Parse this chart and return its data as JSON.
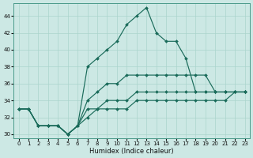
{
  "xlabel": "Humidex (Indice chaleur)",
  "bg_color": "#cce8e4",
  "line_color": "#1a6b5a",
  "grid_color": "#aad4cc",
  "lines": [
    {
      "x": [
        0,
        1,
        2,
        3,
        4,
        5,
        6,
        7,
        8,
        9,
        10,
        11,
        12,
        13,
        14,
        15,
        16,
        17,
        18,
        19,
        20,
        21,
        22,
        23
      ],
      "y": [
        33,
        33,
        31,
        31,
        31,
        30,
        31,
        38,
        39,
        40,
        41,
        43,
        44,
        45,
        42,
        41,
        41,
        39,
        35,
        35,
        35,
        35,
        35,
        35
      ]
    },
    {
      "x": [
        0,
        1,
        2,
        3,
        4,
        5,
        6,
        7,
        8,
        9,
        10,
        11,
        12,
        13,
        14,
        15,
        16,
        17,
        18,
        19,
        20,
        21,
        22,
        23
      ],
      "y": [
        33,
        33,
        31,
        31,
        31,
        30,
        31,
        34,
        35,
        36,
        36,
        37,
        37,
        37,
        37,
        37,
        37,
        37,
        37,
        37,
        35,
        35,
        35,
        35
      ]
    },
    {
      "x": [
        0,
        1,
        2,
        3,
        4,
        5,
        6,
        7,
        8,
        9,
        10,
        11,
        12,
        13,
        14,
        15,
        16,
        17,
        18,
        19,
        20,
        21,
        22,
        23
      ],
      "y": [
        33,
        33,
        31,
        31,
        31,
        30,
        31,
        33,
        33,
        34,
        34,
        34,
        35,
        35,
        35,
        35,
        35,
        35,
        35,
        35,
        35,
        35,
        35,
        35
      ]
    },
    {
      "x": [
        0,
        1,
        2,
        3,
        4,
        5,
        6,
        7,
        8,
        9,
        10,
        11,
        12,
        13,
        14,
        15,
        16,
        17,
        18,
        19,
        20,
        21,
        22,
        23
      ],
      "y": [
        33,
        33,
        31,
        31,
        31,
        30,
        31,
        32,
        33,
        33,
        33,
        33,
        34,
        34,
        34,
        34,
        34,
        34,
        34,
        34,
        34,
        34,
        35,
        35
      ]
    }
  ],
  "ylim": [
    29.5,
    45.5
  ],
  "xlim": [
    -0.5,
    23.5
  ],
  "yticks": [
    30,
    32,
    34,
    36,
    38,
    40,
    42,
    44
  ],
  "xticks": [
    0,
    1,
    2,
    3,
    4,
    5,
    6,
    7,
    8,
    9,
    10,
    11,
    12,
    13,
    14,
    15,
    16,
    17,
    18,
    19,
    20,
    21,
    22,
    23
  ]
}
